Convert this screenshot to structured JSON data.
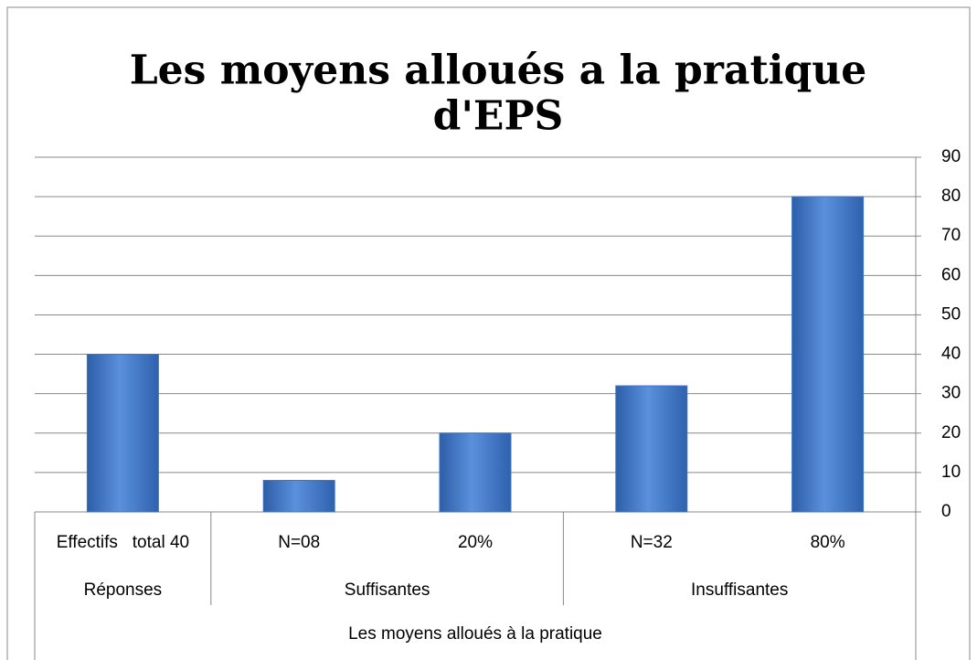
{
  "chart_data": {
    "type": "bar",
    "title": "Les moyens alloués a la pratique d'EPS",
    "x_label": "Les moyens alloués à la pratique",
    "groups": [
      {
        "label": "Réponses",
        "categories": [
          "Effectifs   total 40"
        ]
      },
      {
        "label": "Suffisantes",
        "categories": [
          "N=08",
          "20%"
        ]
      },
      {
        "label": "Insuffisantes",
        "categories": [
          "N=32",
          "80%"
        ]
      }
    ],
    "values": [
      40,
      8,
      20,
      32,
      80
    ],
    "color": "#3f74c4",
    "ylim": [
      0,
      90
    ],
    "yticks": [
      0,
      10,
      20,
      30,
      40,
      50,
      60,
      70,
      80,
      90
    ],
    "y_axis_side": "right",
    "grid": true
  }
}
